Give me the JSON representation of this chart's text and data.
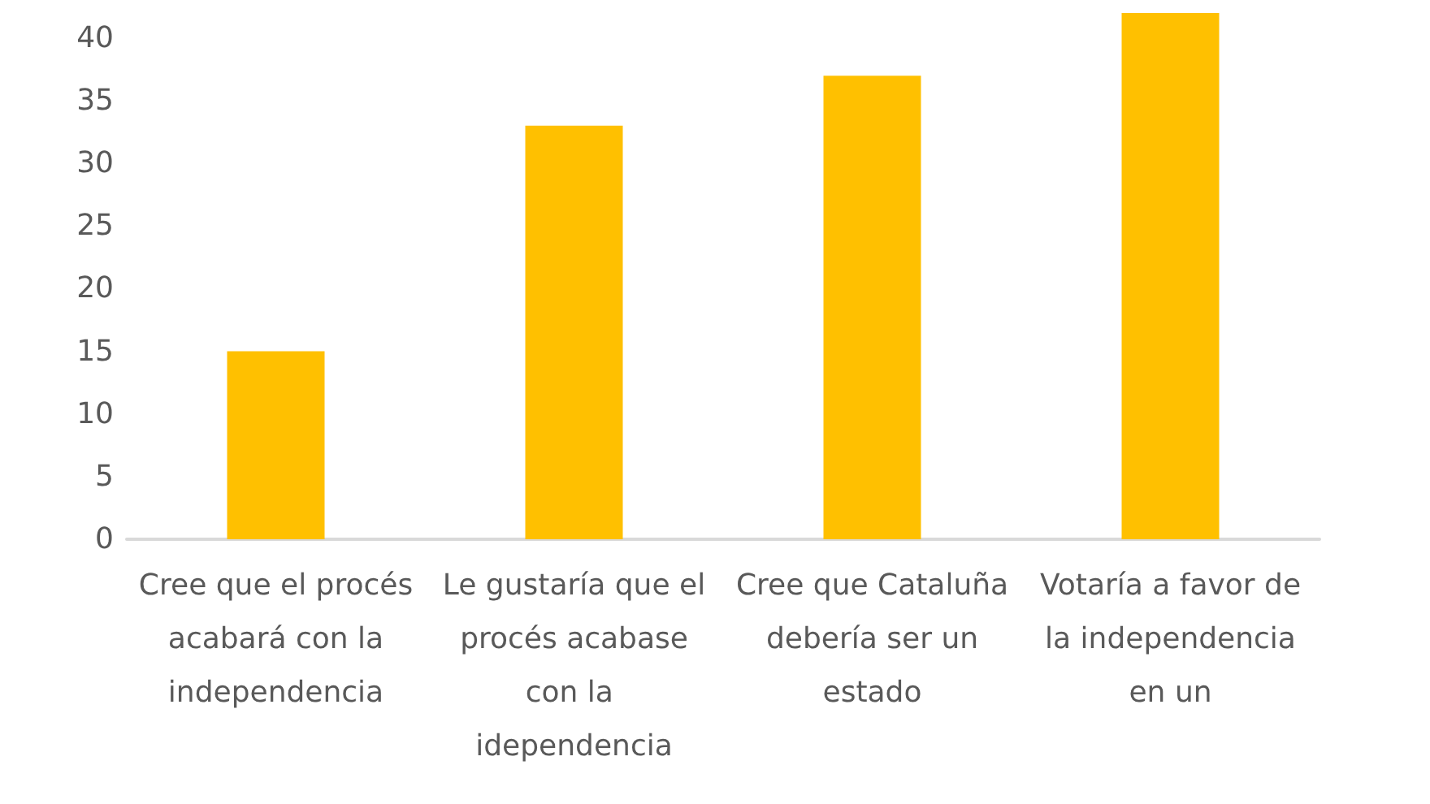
{
  "chart_data": {
    "type": "bar",
    "categories": [
      "Cree que el procés acabará con la independencia",
      "Le gustaría que el procés acabase con la idependencia",
      "Cree que Cataluña debería ser un estado",
      "Votaría a favor de la independencia en un"
    ],
    "values": [
      15,
      33,
      37,
      42
    ],
    "color": "#ffc000",
    "ylim": [
      0,
      42
    ],
    "yticks": [
      0,
      5,
      10,
      15,
      20,
      25,
      30,
      35,
      40
    ],
    "grid": false
  }
}
